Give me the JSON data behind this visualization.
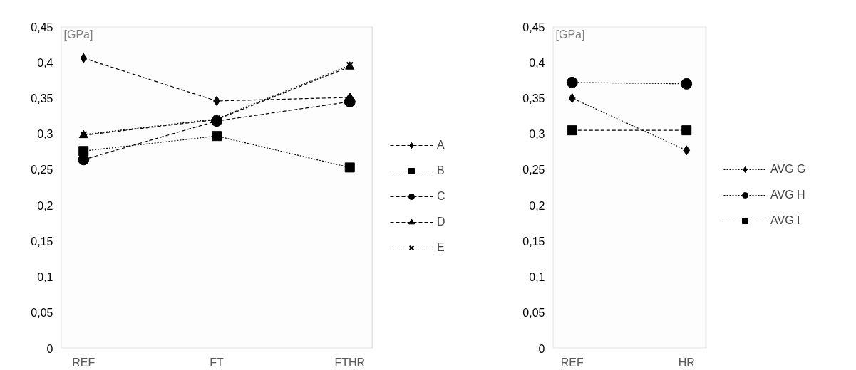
{
  "chart_data": [
    {
      "type": "line",
      "ylabel": "[GPa]",
      "categories": [
        "REF",
        "FT",
        "FTHR"
      ],
      "ylim": [
        0,
        0.45
      ],
      "yticks": [
        {
          "value": 0,
          "label": "0"
        },
        {
          "value": 0.05,
          "label": "0,05"
        },
        {
          "value": 0.1,
          "label": "0,1"
        },
        {
          "value": 0.15,
          "label": "0,15"
        },
        {
          "value": 0.2,
          "label": "0,2"
        },
        {
          "value": 0.25,
          "label": "0,25"
        },
        {
          "value": 0.3,
          "label": "0,3"
        },
        {
          "value": 0.35,
          "label": "0,35"
        },
        {
          "value": 0.4,
          "label": "0,4"
        },
        {
          "value": 0.45,
          "label": "0,45"
        }
      ],
      "grid": false,
      "legend": "right",
      "series": [
        {
          "name": "A",
          "color": "#000000",
          "marker": "diamond",
          "line_style": "dashed",
          "values": [
            0.406,
            0.346,
            0.351
          ]
        },
        {
          "name": "B",
          "color": "#000000",
          "marker": "square",
          "line_style": "dotted",
          "values": [
            0.276,
            0.297,
            0.253
          ]
        },
        {
          "name": "C",
          "color": "#000000",
          "marker": "circle",
          "line_style": "dashed",
          "values": [
            0.264,
            0.318,
            0.345
          ]
        },
        {
          "name": "D",
          "color": "#000000",
          "marker": "triangle",
          "line_style": "dashed",
          "values": [
            0.298,
            0.32,
            0.394
          ]
        },
        {
          "name": "E",
          "color": "#000000",
          "marker": "cross",
          "line_style": "dotted",
          "values": [
            0.299,
            0.321,
            0.396
          ]
        }
      ]
    },
    {
      "type": "line",
      "ylabel": "[GPa]",
      "categories": [
        "REF",
        "HR"
      ],
      "ylim": [
        0,
        0.45
      ],
      "yticks": [
        {
          "value": 0,
          "label": "0"
        },
        {
          "value": 0.05,
          "label": "0,05"
        },
        {
          "value": 0.1,
          "label": "0,1"
        },
        {
          "value": 0.15,
          "label": "0,15"
        },
        {
          "value": 0.2,
          "label": "0,2"
        },
        {
          "value": 0.25,
          "label": "0,25"
        },
        {
          "value": 0.3,
          "label": "0,3"
        },
        {
          "value": 0.35,
          "label": "0,35"
        },
        {
          "value": 0.4,
          "label": "0,4"
        },
        {
          "value": 0.45,
          "label": "0,45"
        }
      ],
      "grid": false,
      "legend": "right",
      "series": [
        {
          "name": "AVG G",
          "color": "#000000",
          "marker": "diamond",
          "line_style": "dotted",
          "values": [
            0.35,
            0.277
          ]
        },
        {
          "name": "AVG H",
          "color": "#000000",
          "marker": "circle",
          "line_style": "dotted",
          "values": [
            0.372,
            0.37
          ]
        },
        {
          "name": "AVG I",
          "color": "#000000",
          "marker": "square",
          "line_style": "dashed",
          "values": [
            0.305,
            0.305
          ]
        }
      ]
    }
  ]
}
